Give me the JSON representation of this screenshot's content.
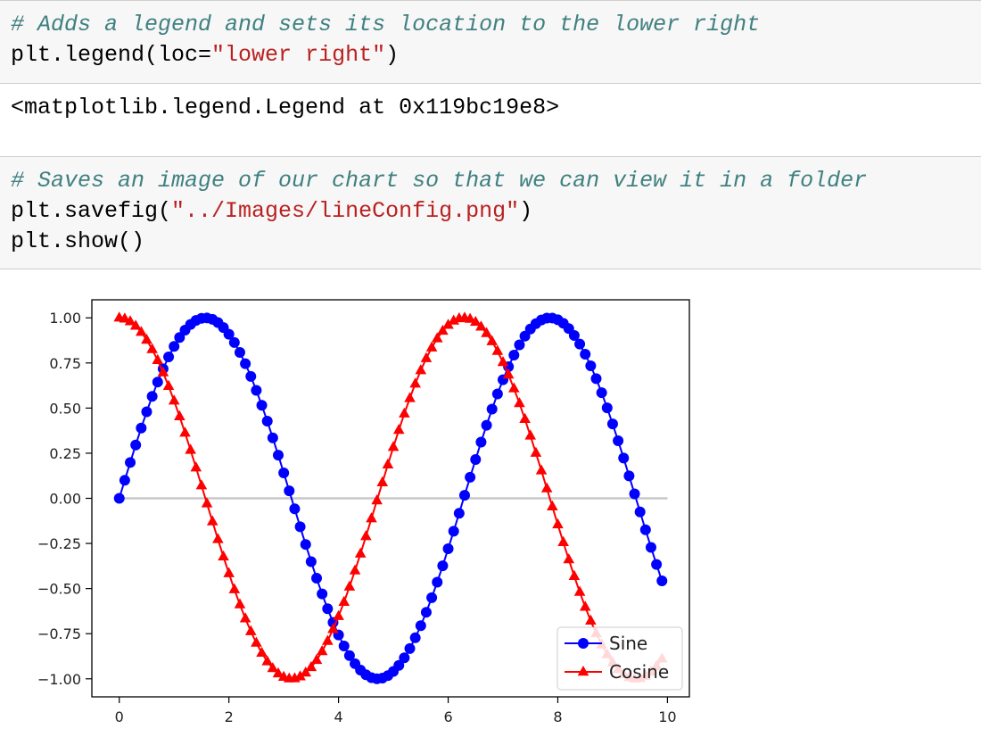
{
  "cells": {
    "legend_cell": {
      "comment": "# Adds a legend and sets its location to the lower right",
      "call_prefix": "plt.legend(loc=",
      "call_string": "\"lower right\"",
      "call_suffix": ")"
    },
    "legend_output": "<matplotlib.legend.Legend at 0x119bc19e8>",
    "savefig_cell": {
      "comment": "# Saves an image of our chart so that we can view it in a folder",
      "call_prefix": "plt.savefig(",
      "call_string": "\"../Images/lineConfig.png\"",
      "call_suffix": ")",
      "show_line": "plt.show()"
    }
  },
  "colors": {
    "sine": "#0000ff",
    "cosine": "#ff0000",
    "zero_line": "#c8c8c8",
    "comment": "#408080",
    "string": "#ba2121",
    "cell_background": "#f7f7f7"
  },
  "chart_data": {
    "type": "line",
    "xlim": [
      -0.5,
      10.4
    ],
    "ylim": [
      -1.1,
      1.1
    ],
    "x_ticks": [
      0,
      2,
      4,
      6,
      8,
      10
    ],
    "x_tick_labels": [
      "0",
      "2",
      "4",
      "6",
      "8",
      "10"
    ],
    "y_ticks": [
      1.0,
      0.75,
      0.5,
      0.25,
      0.0,
      -0.25,
      -0.5,
      -0.75,
      -1.0
    ],
    "y_tick_labels": [
      "1.00",
      "0.75",
      "0.50",
      "0.25",
      "0.00",
      "−0.25",
      "−0.50",
      "−0.75",
      "−1.00"
    ],
    "grid": false,
    "legend_position": "lower right",
    "x_start": 0.0,
    "x_stop": 10.0,
    "x_step": 0.1,
    "horizontal_line_y": 0,
    "series": [
      {
        "name": "Sine",
        "function": "sin",
        "marker": "circle",
        "color": "#0000ff"
      },
      {
        "name": "Cosine",
        "function": "cos",
        "marker": "triangle",
        "color": "#ff0000"
      }
    ]
  }
}
